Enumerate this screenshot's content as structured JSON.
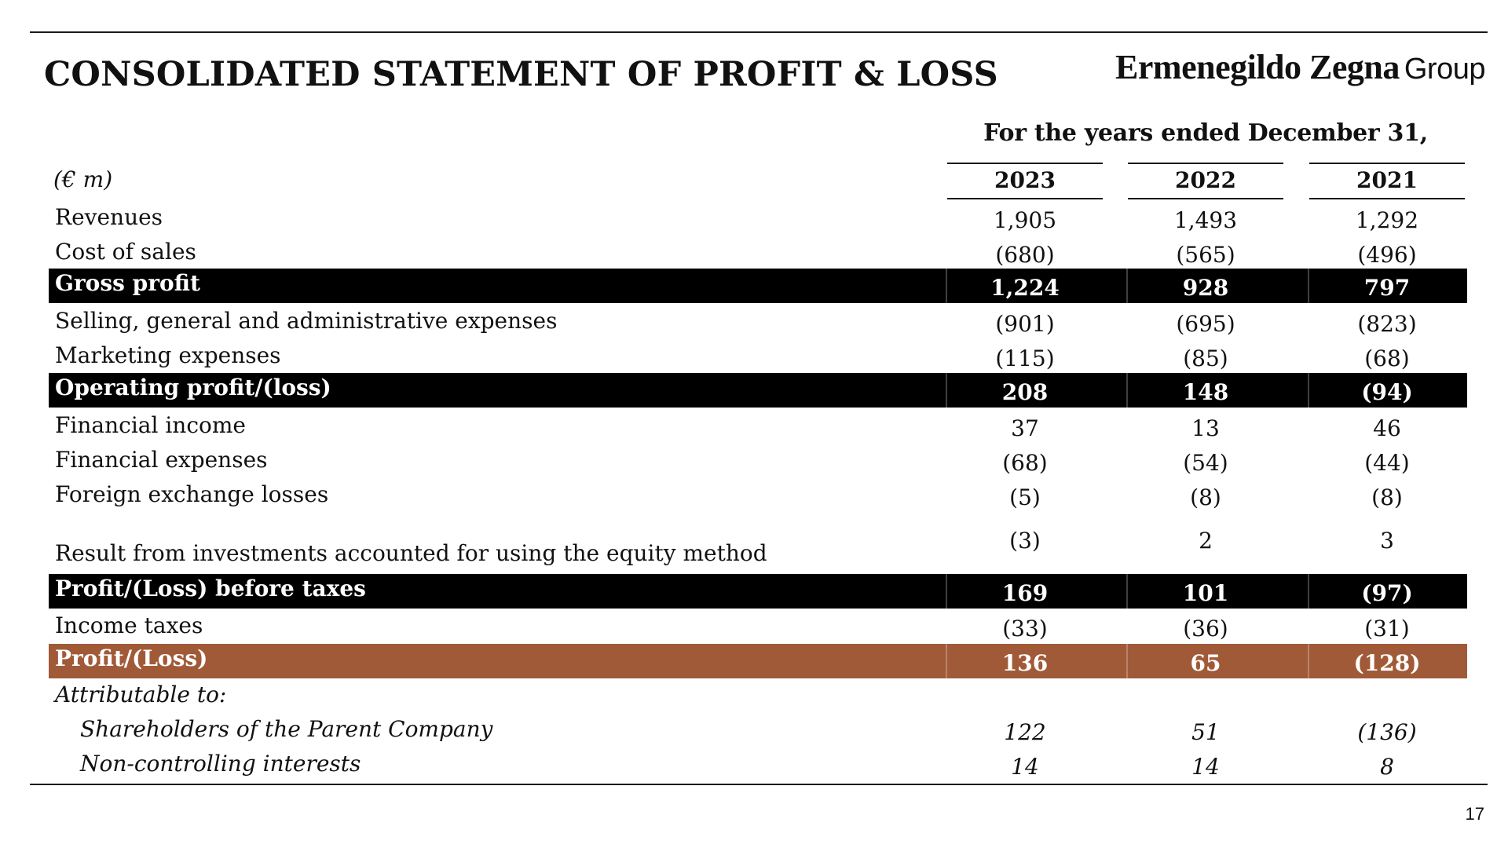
{
  "title": "CONSOLIDATED STATEMENT OF PROFIT & LOSS",
  "brand": {
    "name": "Ermenegildo Zegna",
    "suffix": "Group"
  },
  "period_header": "For the years ended December 31,",
  "unit_label": "(€ m)",
  "years": [
    "2023",
    "2022",
    "2021"
  ],
  "colors": {
    "band_black": "#000000",
    "band_brown": "#a15a38"
  },
  "rows": [
    {
      "label": "Revenues",
      "values": [
        "1,905",
        "1,493",
        "1,292"
      ]
    },
    {
      "label": "Cost of sales",
      "values": [
        "(680)",
        "(565)",
        "(496)"
      ]
    },
    {
      "label": "Gross profit",
      "values": [
        "1,224",
        "928",
        "797"
      ]
    },
    {
      "label": "Selling, general and administrative expenses",
      "values": [
        "(901)",
        "(695)",
        "(823)"
      ]
    },
    {
      "label": "Marketing expenses",
      "values": [
        "(115)",
        "(85)",
        "(68)"
      ]
    },
    {
      "label": "Operating profit/(loss)",
      "values": [
        "208",
        "148",
        "(94)"
      ]
    },
    {
      "label": "Financial income",
      "values": [
        "37",
        "13",
        "46"
      ]
    },
    {
      "label": "Financial expenses",
      "values": [
        "(68)",
        "(54)",
        "(44)"
      ]
    },
    {
      "label": "Foreign exchange losses",
      "values": [
        "(5)",
        "(8)",
        "(8)"
      ]
    },
    {
      "label": "Result from investments accounted for using the equity method",
      "values": [
        "(3)",
        "2",
        "3"
      ]
    },
    {
      "label": "Profit/(Loss) before taxes",
      "values": [
        "169",
        "101",
        "(97)"
      ]
    },
    {
      "label": "Income taxes",
      "values": [
        "(33)",
        "(36)",
        "(31)"
      ]
    },
    {
      "label": "Profit/(Loss)",
      "values": [
        "136",
        "65",
        "(128)"
      ]
    },
    {
      "label": "Attributable to:",
      "values": [
        "",
        "",
        ""
      ]
    },
    {
      "label": "Shareholders of the Parent Company",
      "values": [
        "122",
        "51",
        "(136)"
      ]
    },
    {
      "label": "Non-controlling interests",
      "values": [
        "14",
        "14",
        "8"
      ]
    }
  ],
  "page_number": "17"
}
